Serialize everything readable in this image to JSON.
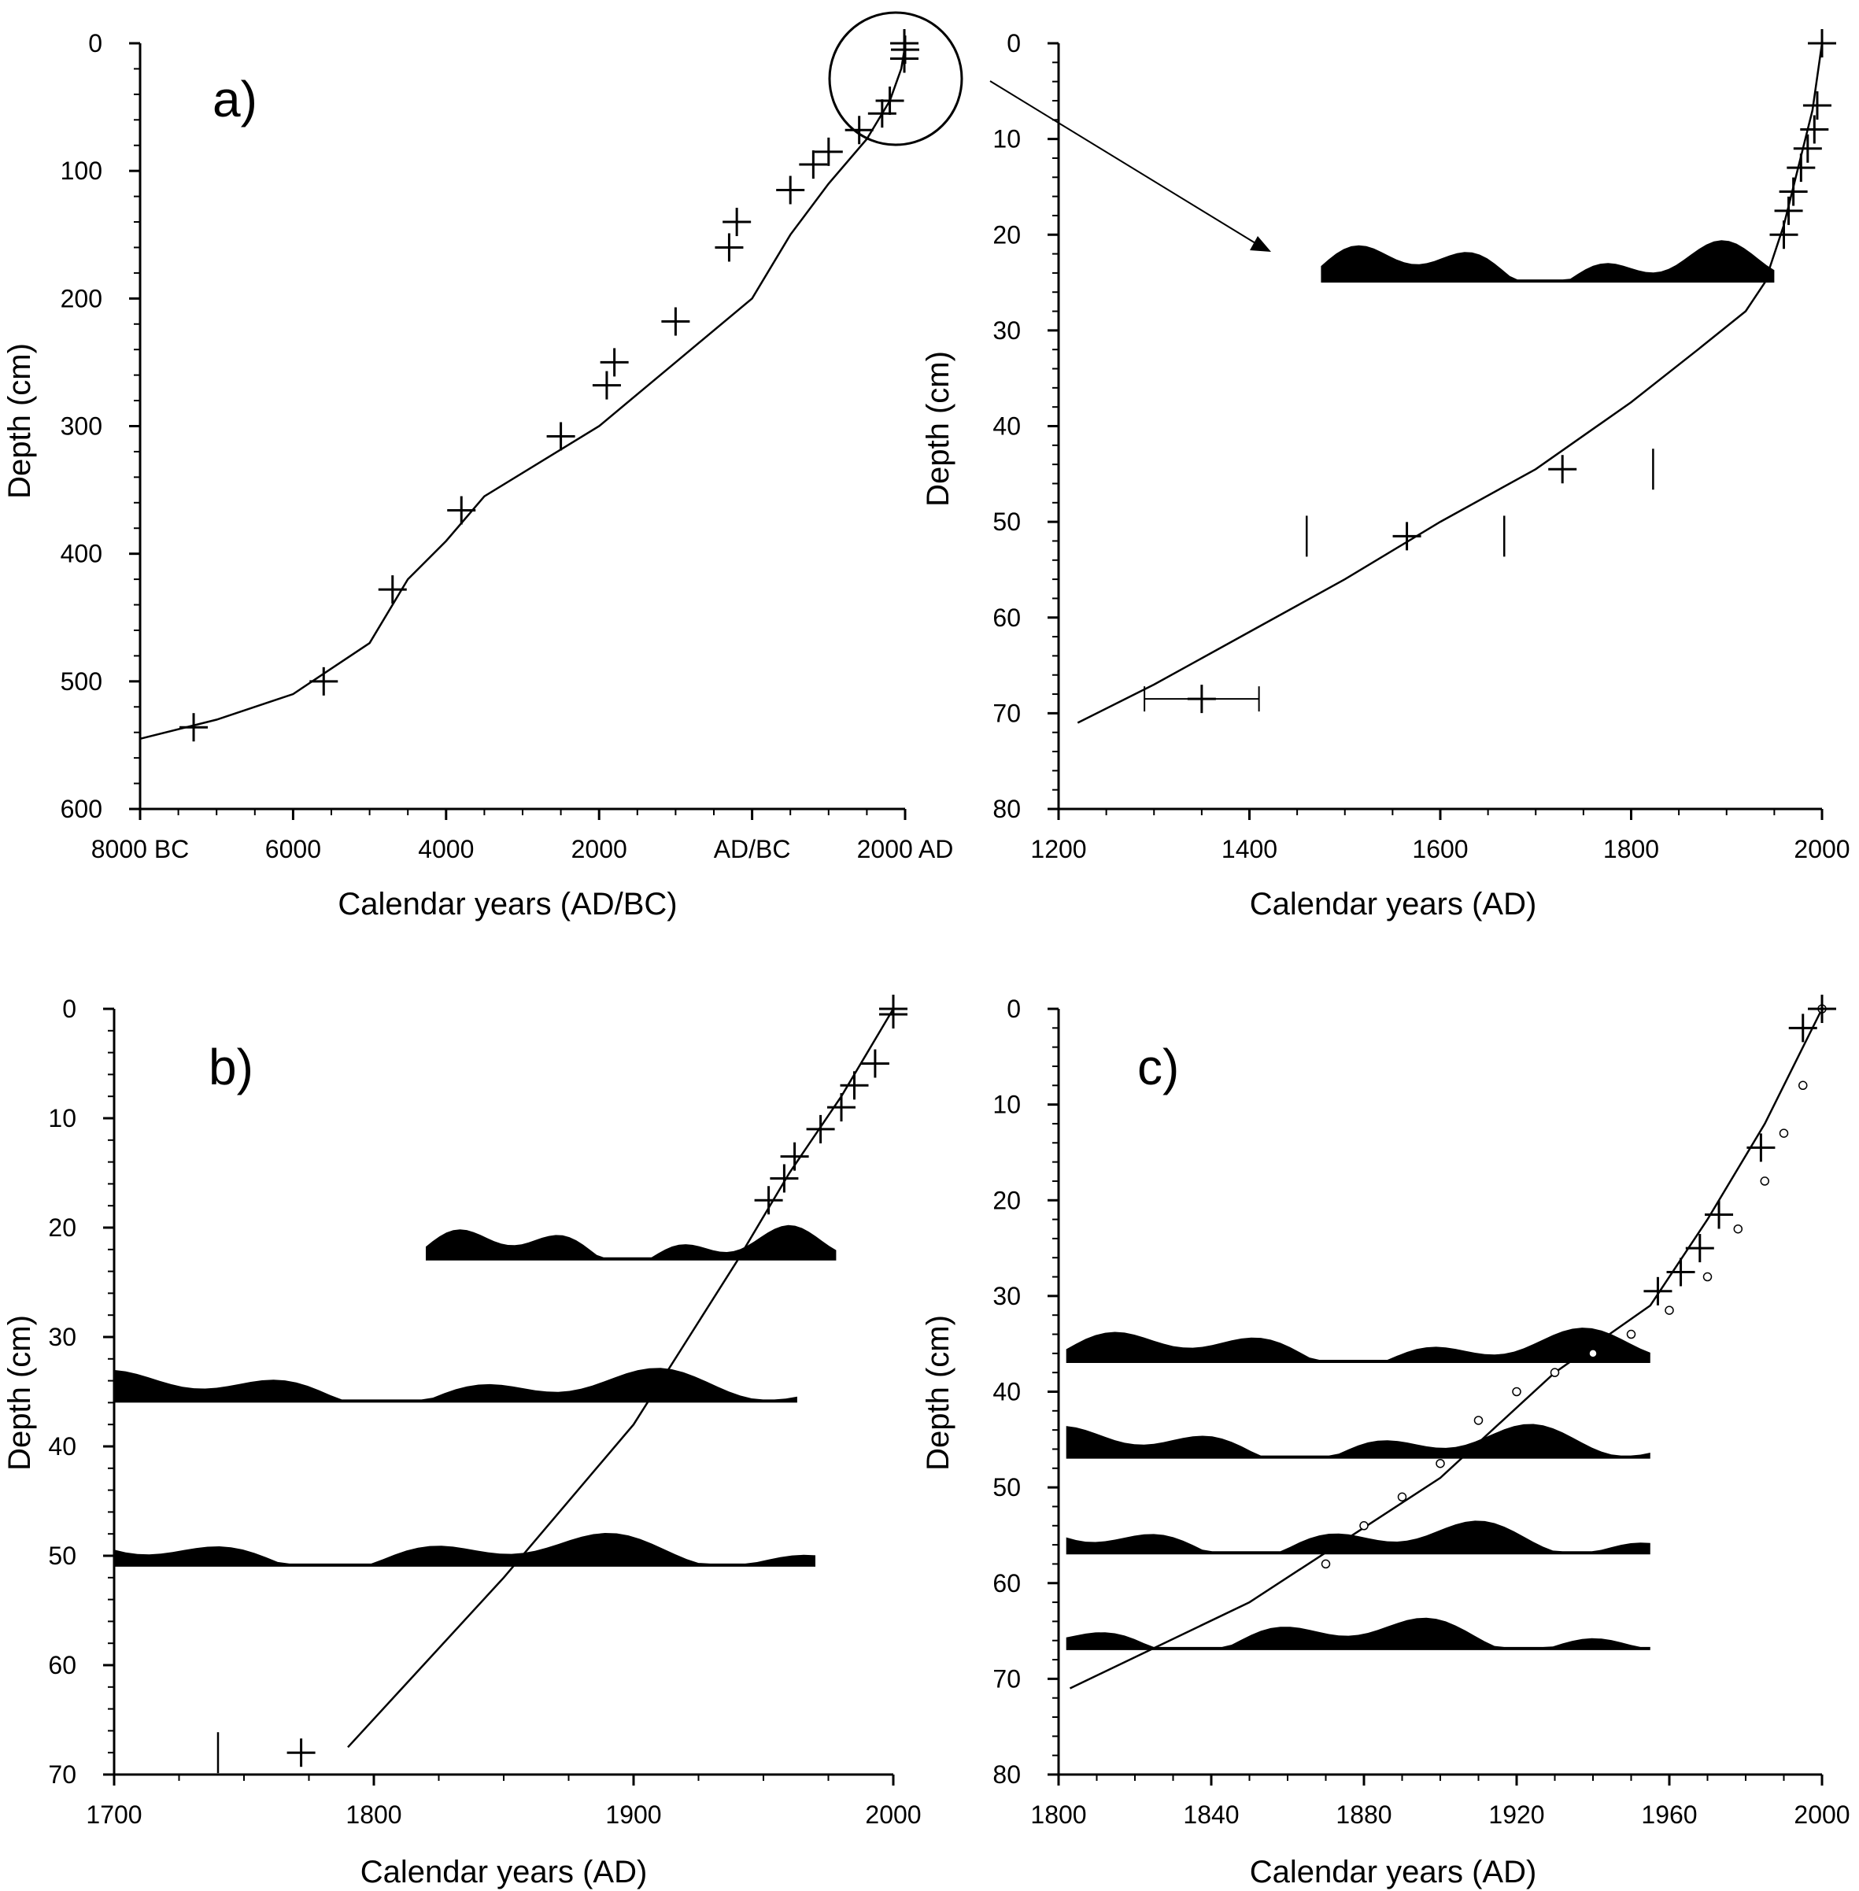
{
  "chart_data": [
    {
      "panel": "a)",
      "type": "scatter",
      "xlabel": "Calendar years (AD/BC)",
      "ylabel": "Depth (cm)",
      "xlim": [
        -8000,
        2000
      ],
      "ylim": [
        0,
        600
      ],
      "y_inverted": true,
      "xtick_labels": [
        "8000 BC",
        "6000",
        "4000",
        "2000",
        "AD/BC",
        "2000 AD"
      ],
      "ytick_labels": [
        "0",
        "100",
        "200",
        "300",
        "400",
        "500",
        "600"
      ],
      "curve": [
        [
          -8000,
          545
        ],
        [
          -7000,
          530
        ],
        [
          -6000,
          510
        ],
        [
          -5000,
          470
        ],
        [
          -4500,
          420
        ],
        [
          -4000,
          390
        ],
        [
          -3500,
          355
        ],
        [
          -2000,
          300
        ],
        [
          -1000,
          250
        ],
        [
          0,
          200
        ],
        [
          500,
          150
        ],
        [
          1000,
          110
        ],
        [
          1500,
          75
        ],
        [
          1800,
          45
        ],
        [
          1950,
          20
        ],
        [
          2000,
          2
        ]
      ],
      "points": [
        [
          -7300,
          536
        ],
        [
          -5600,
          500
        ],
        [
          -4700,
          428
        ],
        [
          -3800,
          366
        ],
        [
          -2500,
          308
        ],
        [
          -1900,
          268
        ],
        [
          -1800,
          250
        ],
        [
          -1000,
          218
        ],
        [
          -300,
          160
        ],
        [
          -200,
          140
        ],
        [
          500,
          115
        ],
        [
          800,
          95
        ],
        [
          1000,
          85
        ],
        [
          1400,
          68
        ],
        [
          1700,
          55
        ],
        [
          1800,
          45
        ],
        [
          1990,
          12
        ],
        [
          2000,
          5
        ],
        [
          1990,
          0
        ]
      ]
    },
    {
      "panel": "",
      "type": "scatter",
      "xlabel": "Calendar years (AD)",
      "ylabel": "Depth (cm)",
      "xlim": [
        1200,
        2000
      ],
      "ylim": [
        0,
        80
      ],
      "y_inverted": true,
      "xtick_labels": [
        "1200",
        "1400",
        "1600",
        "1800",
        "2000"
      ],
      "ytick_labels": [
        "0",
        "10",
        "20",
        "30",
        "40",
        "50",
        "60",
        "70",
        "80"
      ],
      "curve": [
        [
          1220,
          71
        ],
        [
          1300,
          67
        ],
        [
          1400,
          61.5
        ],
        [
          1500,
          56
        ],
        [
          1600,
          50
        ],
        [
          1700,
          44.5
        ],
        [
          1800,
          37.5
        ],
        [
          1870,
          32
        ],
        [
          1920,
          28
        ],
        [
          1940,
          25
        ],
        [
          1960,
          19
        ],
        [
          1975,
          13
        ],
        [
          1990,
          7
        ],
        [
          2000,
          0
        ]
      ],
      "points": [
        [
          1350,
          68.5
        ],
        [
          1565,
          51.5
        ],
        [
          1728,
          44.5
        ],
        [
          1960,
          20
        ],
        [
          1965,
          17.5
        ],
        [
          1970,
          15.5
        ],
        [
          1978,
          13
        ],
        [
          1985,
          11
        ],
        [
          1992,
          9
        ],
        [
          1995,
          6.5
        ],
        [
          2000,
          0
        ]
      ],
      "error_bars": [
        [
          1290,
          1410,
          68.5
        ]
      ],
      "markers": [
        [
          1460,
          51.5
        ],
        [
          1667,
          51.5
        ],
        [
          1823,
          44.5
        ]
      ],
      "histogram_baseline": 25,
      "histogram_range": [
        1475,
        1950
      ]
    },
    {
      "panel": "b)",
      "type": "scatter",
      "xlabel": "Calendar years (AD)",
      "ylabel": "Depth (cm)",
      "xlim": [
        1700,
        2000
      ],
      "ylim": [
        0,
        70
      ],
      "y_inverted": true,
      "xtick_labels": [
        "1700",
        "1800",
        "1900",
        "2000"
      ],
      "ytick_labels": [
        "0",
        "10",
        "20",
        "30",
        "40",
        "50",
        "60",
        "70"
      ],
      "curve": [
        [
          1790,
          67.5
        ],
        [
          1850,
          52
        ],
        [
          1900,
          38
        ],
        [
          1940,
          23
        ],
        [
          1960,
          15
        ],
        [
          1980,
          8
        ],
        [
          2000,
          0
        ]
      ],
      "points": [
        [
          1772,
          68
        ],
        [
          1952,
          17.5
        ],
        [
          1958,
          15.5
        ],
        [
          1962,
          13.5
        ],
        [
          1972,
          11
        ],
        [
          1980,
          9
        ],
        [
          1985,
          7
        ],
        [
          1993,
          5
        ],
        [
          2000,
          0.5
        ],
        [
          2000,
          0
        ]
      ],
      "markers": [
        [
          1740,
          68
        ]
      ],
      "histograms": [
        {
          "baseline": 23,
          "x_range": [
            1820,
            1978
          ]
        },
        {
          "baseline": 36,
          "x_range": [
            1700,
            1963
          ]
        },
        {
          "baseline": 51,
          "x_range": [
            1700,
            1970
          ]
        }
      ]
    },
    {
      "panel": "c)",
      "type": "scatter",
      "xlabel": "Calendar years (AD)",
      "ylabel": "Depth (cm)",
      "xlim": [
        1800,
        2000
      ],
      "ylim": [
        0,
        80
      ],
      "y_inverted": true,
      "xtick_labels": [
        "1800",
        "1840",
        "1880",
        "1920",
        "1960",
        "2000"
      ],
      "ytick_labels": [
        "0",
        "10",
        "20",
        "30",
        "40",
        "50",
        "60",
        "70",
        "80"
      ],
      "curve": [
        [
          1803,
          71
        ],
        [
          1850,
          62
        ],
        [
          1900,
          49
        ],
        [
          1930,
          38
        ],
        [
          1955,
          31
        ],
        [
          1970,
          22
        ],
        [
          1985,
          12
        ],
        [
          2000,
          0
        ]
      ],
      "points": [
        [
          1957,
          29.5
        ],
        [
          1963,
          27.5
        ],
        [
          1968,
          25
        ],
        [
          1973,
          21.5
        ],
        [
          1984,
          14.5
        ],
        [
          1995,
          2
        ],
        [
          2000,
          0
        ]
      ],
      "open_circles": [
        [
          1870,
          58
        ],
        [
          1880,
          54
        ],
        [
          1890,
          51
        ],
        [
          1900,
          47.5
        ],
        [
          1910,
          43
        ],
        [
          1920,
          40
        ],
        [
          1930,
          38
        ],
        [
          1940,
          36
        ],
        [
          1950,
          34
        ],
        [
          1960,
          31.5
        ],
        [
          1970,
          28
        ],
        [
          1978,
          23
        ],
        [
          1985,
          18
        ],
        [
          1990,
          13
        ],
        [
          1995,
          8
        ],
        [
          2000,
          0
        ]
      ],
      "histograms": [
        {
          "baseline": 37,
          "x_range": [
            1802,
            1955
          ]
        },
        {
          "baseline": 47,
          "x_range": [
            1802,
            1955
          ]
        },
        {
          "baseline": 57,
          "x_range": [
            1802,
            1955
          ]
        },
        {
          "baseline": 67,
          "x_range": [
            1802,
            1955
          ]
        }
      ]
    }
  ]
}
